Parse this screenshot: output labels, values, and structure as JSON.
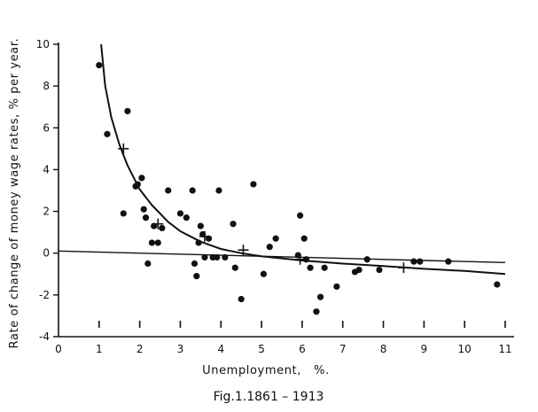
{
  "chart_data": {
    "type": "scatter",
    "title": "",
    "caption": "Fig.1.1861 – 1913",
    "xlabel": "Unemployment,   %.",
    "ylabel": "Rate of change of money wage rates, % per year.",
    "xlim": [
      0,
      11
    ],
    "ylim": [
      -4,
      10
    ],
    "x_ticks": [
      "0",
      "1",
      "2",
      "3",
      "4",
      "5",
      "6",
      "7",
      "8",
      "9",
      "10",
      "11"
    ],
    "y_ticks": [
      "10",
      "8",
      "6",
      "4",
      "2",
      "0",
      "-2",
      "-4"
    ],
    "grid": false,
    "series": [
      {
        "marker": "dot",
        "x": [
          1.0,
          1.2,
          1.6,
          1.7,
          1.9,
          1.95,
          2.05,
          2.1,
          2.15,
          2.2,
          2.3,
          2.35,
          2.45,
          2.55,
          2.7,
          3.0,
          3.15,
          3.3,
          3.35,
          3.4,
          3.45,
          3.5,
          3.55,
          3.6,
          3.7,
          3.8,
          3.9,
          3.95,
          4.1,
          4.3,
          4.35,
          4.5,
          4.8,
          5.05,
          5.2,
          5.35,
          5.9,
          5.95,
          6.05,
          6.1,
          6.2,
          6.35,
          6.45,
          6.55,
          6.85,
          7.3,
          7.4,
          7.6,
          7.9,
          8.75,
          8.9,
          9.6,
          10.8
        ],
        "y": [
          9.0,
          5.7,
          1.9,
          6.8,
          3.2,
          3.3,
          3.6,
          2.1,
          1.7,
          -0.5,
          0.5,
          1.3,
          0.5,
          1.2,
          3.0,
          1.9,
          1.7,
          3.0,
          -0.5,
          -1.1,
          0.5,
          1.3,
          0.9,
          -0.2,
          0.7,
          -0.2,
          -0.2,
          3.0,
          -0.2,
          1.4,
          -0.7,
          -2.2,
          3.3,
          -1.0,
          0.3,
          0.7,
          -0.1,
          1.8,
          0.7,
          -0.3,
          -0.7,
          -2.8,
          -2.1,
          -0.7,
          -1.6,
          -0.9,
          -0.8,
          -0.3,
          -0.8,
          -0.4,
          -0.4,
          -0.4,
          -1.5
        ]
      },
      {
        "marker": "cross",
        "x": [
          1.6,
          2.45,
          3.6,
          4.55,
          5.95,
          8.5
        ],
        "y": [
          5.0,
          1.4,
          0.8,
          0.15,
          -0.3,
          -0.7
        ]
      }
    ],
    "fitted_curve": {
      "x": [
        1.05,
        1.15,
        1.3,
        1.5,
        1.7,
        2.0,
        2.3,
        2.7,
        3.0,
        3.5,
        4.0,
        4.5,
        5.0,
        5.5,
        6.0,
        7.0,
        8.0,
        9.0,
        10.0,
        11.0
      ],
      "y": [
        10.0,
        8.0,
        6.5,
        5.2,
        4.2,
        3.05,
        2.3,
        1.5,
        1.05,
        0.55,
        0.2,
        0.0,
        -0.15,
        -0.25,
        -0.35,
        -0.5,
        -0.62,
        -0.75,
        -0.85,
        -1.0
      ]
    },
    "reference_line": {
      "x": [
        0,
        11
      ],
      "y": [
        0.1,
        -0.45
      ]
    }
  }
}
